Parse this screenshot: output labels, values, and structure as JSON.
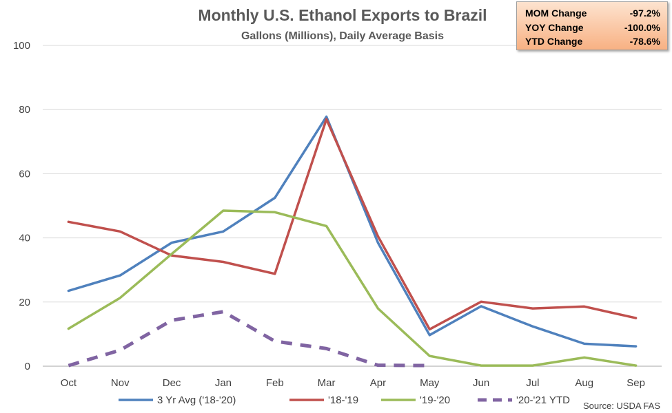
{
  "chart_data": {
    "type": "line",
    "title": "Monthly U.S. Ethanol Exports to Brazil",
    "subtitle": "Gallons (Millions), Daily Average Basis",
    "categories": [
      "Oct",
      "Nov",
      "Dec",
      "Jan",
      "Feb",
      "Mar",
      "Apr",
      "May",
      "Jun",
      "Jul",
      "Aug",
      "Sep"
    ],
    "ylim": [
      0,
      100
    ],
    "yticks": [
      0,
      20,
      40,
      60,
      80,
      100
    ],
    "grid": true,
    "legend": "bottom",
    "series": [
      {
        "name": "3 Yr Avg ('18-'20)",
        "color": "#4f81bd",
        "dash": false,
        "values": [
          23.5,
          28.3,
          38.5,
          42.0,
          52.5,
          77.8,
          38.5,
          9.7,
          18.7,
          12.4,
          7.0,
          6.2
        ]
      },
      {
        "name": "'18-'19",
        "color": "#c0504d",
        "dash": false,
        "values": [
          45.0,
          42.0,
          34.5,
          32.5,
          28.8,
          77.0,
          40.5,
          11.5,
          20.1,
          18.0,
          18.6,
          15.0
        ]
      },
      {
        "name": "'19-'20",
        "color": "#9bbb59",
        "dash": false,
        "values": [
          11.7,
          21.3,
          35.0,
          48.5,
          48.0,
          43.7,
          18.0,
          3.2,
          0.2,
          0.2,
          2.7,
          0.2
        ]
      },
      {
        "name": "'20-'21 YTD",
        "color": "#8064a2",
        "dash": true,
        "values": [
          0.2,
          5.0,
          14.3,
          17.0,
          7.8,
          5.5,
          0.3,
          0.2,
          null,
          null,
          null,
          null
        ]
      }
    ],
    "source": "Source: USDA FAS"
  },
  "stats": [
    {
      "label": "MOM Change",
      "value": "-97.2%"
    },
    {
      "label": "YOY Change",
      "value": "-100.0%"
    },
    {
      "label": "YTD Change",
      "value": "-78.6%"
    }
  ]
}
